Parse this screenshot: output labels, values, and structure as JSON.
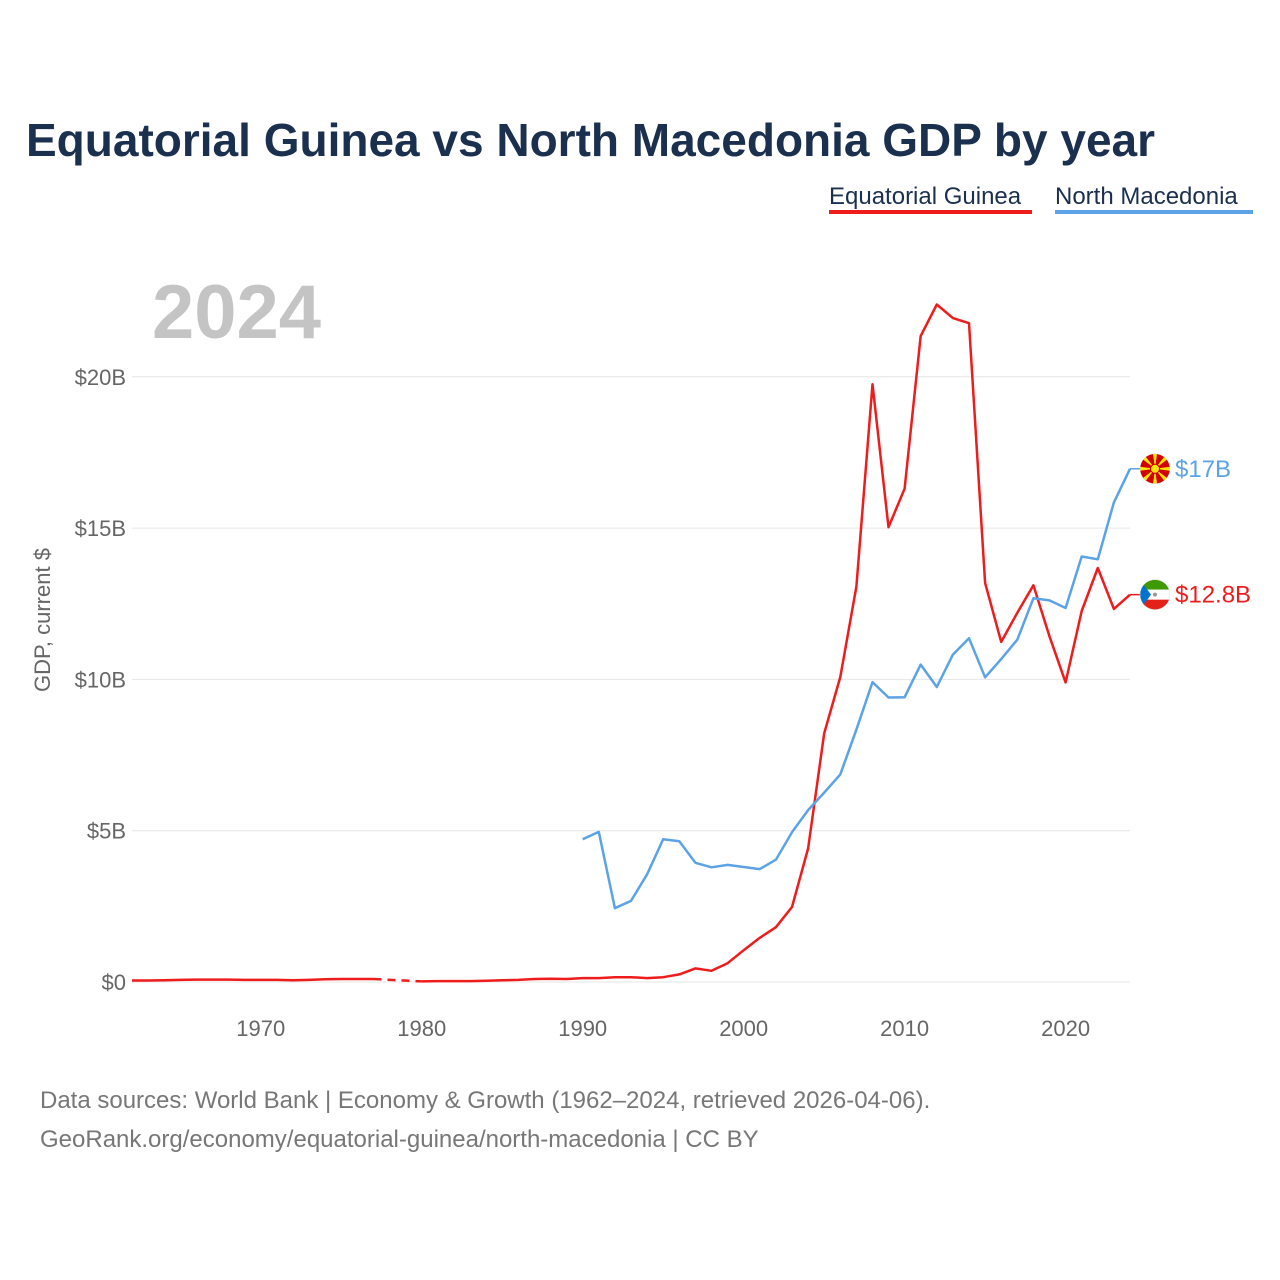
{
  "chart_data": {
    "type": "line",
    "title": "Equatorial Guinea vs North Macedonia GDP by year",
    "year_label": "2024",
    "ylabel": "GDP, current $",
    "xlim": [
      1962,
      2024
    ],
    "ylim": [
      0,
      23
    ],
    "x_ticks": [
      1970,
      1980,
      1990,
      2000,
      2010,
      2020
    ],
    "y_ticks": [
      {
        "value": 0,
        "label": "$0"
      },
      {
        "value": 5,
        "label": "$5B"
      },
      {
        "value": 10,
        "label": "$10B"
      },
      {
        "value": 15,
        "label": "$15B"
      },
      {
        "value": 20,
        "label": "$20B"
      }
    ],
    "series": [
      {
        "name": "Equatorial Guinea",
        "color": "#ee1c1c",
        "end_label": "$12.8B",
        "flag": "equatorial-guinea",
        "gap": [
          1977,
          1980
        ],
        "x": [
          1962,
          1963,
          1964,
          1965,
          1966,
          1967,
          1968,
          1969,
          1970,
          1971,
          1972,
          1973,
          1974,
          1975,
          1976,
          1977,
          1980,
          1981,
          1982,
          1983,
          1984,
          1985,
          1986,
          1987,
          1988,
          1989,
          1990,
          1991,
          1992,
          1993,
          1994,
          1995,
          1996,
          1997,
          1998,
          1999,
          2000,
          2001,
          2002,
          2003,
          2004,
          2005,
          2006,
          2007,
          2008,
          2009,
          2010,
          2011,
          2012,
          2013,
          2014,
          2015,
          2016,
          2017,
          2018,
          2019,
          2020,
          2021,
          2022,
          2023,
          2024
        ],
        "values": [
          0.05,
          0.05,
          0.06,
          0.07,
          0.08,
          0.08,
          0.08,
          0.07,
          0.07,
          0.07,
          0.06,
          0.07,
          0.09,
          0.1,
          0.1,
          0.1,
          0.02,
          0.03,
          0.03,
          0.03,
          0.04,
          0.06,
          0.07,
          0.1,
          0.11,
          0.1,
          0.13,
          0.13,
          0.16,
          0.16,
          0.13,
          0.16,
          0.25,
          0.45,
          0.37,
          0.62,
          1.05,
          1.46,
          1.81,
          2.48,
          4.41,
          8.22,
          10.08,
          13.07,
          19.75,
          15.03,
          16.3,
          21.35,
          22.39,
          21.94,
          21.77,
          13.19,
          11.24,
          12.2,
          13.11,
          11.42,
          9.9,
          12.26,
          13.68,
          12.33,
          12.8
        ]
      },
      {
        "name": "North Macedonia",
        "color": "#5ba3e6",
        "end_label": "$17B",
        "flag": "north-macedonia",
        "x": [
          1990,
          1991,
          1992,
          1993,
          1994,
          1995,
          1996,
          1997,
          1998,
          1999,
          2000,
          2001,
          2002,
          2003,
          2004,
          2005,
          2006,
          2007,
          2008,
          2009,
          2010,
          2011,
          2012,
          2013,
          2014,
          2015,
          2016,
          2017,
          2018,
          2019,
          2020,
          2021,
          2022,
          2023,
          2024
        ],
        "values": [
          4.72,
          4.96,
          2.44,
          2.68,
          3.56,
          4.72,
          4.65,
          3.94,
          3.79,
          3.87,
          3.8,
          3.73,
          4.04,
          4.95,
          5.68,
          6.26,
          6.86,
          8.34,
          9.91,
          9.4,
          9.41,
          10.49,
          9.75,
          10.82,
          11.36,
          10.07,
          10.67,
          11.31,
          12.68,
          12.61,
          12.36,
          14.06,
          13.97,
          15.85,
          16.96
        ]
      }
    ],
    "legend": [
      "Equatorial Guinea",
      "North Macedonia"
    ],
    "legend_position": "top-right",
    "grid": true
  },
  "footer": {
    "source_line1": "Data sources: World Bank | Economy & Growth (1962–2024, retrieved 2026-04-06).",
    "source_line2": "GeoRank.org/economy/equatorial-guinea/north-macedonia | CC BY"
  }
}
